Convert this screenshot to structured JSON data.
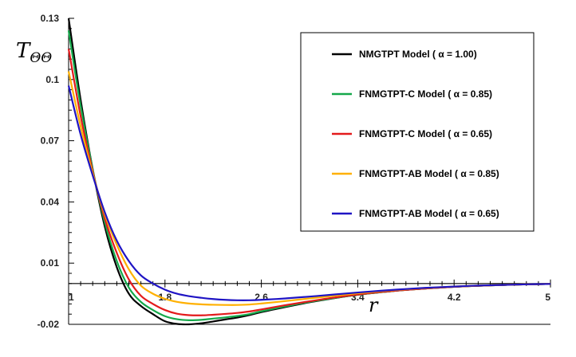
{
  "chart_data": {
    "type": "line",
    "title": "",
    "xlabel": "r",
    "ylabel": "TΘΘ",
    "xlim": [
      1,
      5
    ],
    "ylim": [
      -0.02,
      0.13
    ],
    "grid": false,
    "legend_placement": "top-right",
    "x_ticks": [
      "1",
      "1.8",
      "2.6",
      "3.4",
      "4.2",
      "5"
    ],
    "y_ticks": [
      "0.13",
      "0.1",
      "0.07",
      "0.04",
      "0.01",
      "-0.02"
    ],
    "x": [
      1.0,
      1.1,
      1.2,
      1.3,
      1.4,
      1.5,
      1.6,
      1.7,
      1.8,
      1.9,
      2.0,
      2.1,
      2.2,
      2.3,
      2.4,
      2.5,
      2.6,
      2.8,
      3.0,
      3.2,
      3.4,
      3.6,
      3.8,
      4.0,
      4.2,
      4.4,
      4.6,
      4.8,
      5.0
    ],
    "series": [
      {
        "name": "NMGTPT Model ( α = 1.00)",
        "color": "#000000",
        "values": [
          0.13,
          0.09,
          0.056,
          0.028,
          0.008,
          -0.005,
          -0.011,
          -0.015,
          -0.0185,
          -0.0198,
          -0.02,
          -0.0195,
          -0.0186,
          -0.0176,
          -0.0167,
          -0.0155,
          -0.014,
          -0.0115,
          -0.0092,
          -0.0072,
          -0.0055,
          -0.0042,
          -0.0031,
          -0.0023,
          -0.0016,
          -0.0011,
          -0.0007,
          -0.0004,
          -0.0002
        ]
      },
      {
        "name": "FNMGTPT-C Model ( α = 0.85)",
        "color": "#14a84a",
        "values": [
          0.124,
          0.087,
          0.056,
          0.03,
          0.011,
          -0.002,
          -0.009,
          -0.013,
          -0.016,
          -0.0175,
          -0.018,
          -0.0178,
          -0.0172,
          -0.0166,
          -0.0159,
          -0.015,
          -0.0136,
          -0.0112,
          -0.009,
          -0.0071,
          -0.0055,
          -0.0042,
          -0.0031,
          -0.0023,
          -0.0016,
          -0.0011,
          -0.0007,
          -0.0004,
          -0.0002
        ]
      },
      {
        "name": "FNMGTPT-C Model ( α = 0.65)",
        "color": "#e31a1c",
        "values": [
          0.115,
          0.082,
          0.055,
          0.032,
          0.015,
          0.002,
          -0.006,
          -0.01,
          -0.013,
          -0.0148,
          -0.0155,
          -0.0156,
          -0.0153,
          -0.0149,
          -0.0144,
          -0.0137,
          -0.0127,
          -0.0106,
          -0.0087,
          -0.0069,
          -0.0054,
          -0.0041,
          -0.0031,
          -0.0023,
          -0.0016,
          -0.0011,
          -0.0007,
          -0.0004,
          -0.0002
        ]
      },
      {
        "name": "FNMGTPT-AB Model ( α = 0.85)",
        "color": "#ffb000",
        "values": [
          0.104,
          0.077,
          0.054,
          0.034,
          0.019,
          0.007,
          -0.001,
          -0.005,
          -0.0075,
          -0.009,
          -0.0098,
          -0.0102,
          -0.0104,
          -0.0105,
          -0.0105,
          -0.0103,
          -0.0098,
          -0.0086,
          -0.0073,
          -0.006,
          -0.0048,
          -0.0037,
          -0.0028,
          -0.0021,
          -0.0015,
          -0.001,
          -0.0007,
          -0.0004,
          -0.0002
        ]
      },
      {
        "name": "FNMGTPT-AB Model ( α = 0.65)",
        "color": "#1f14c4",
        "values": [
          0.097,
          0.073,
          0.053,
          0.035,
          0.021,
          0.011,
          0.004,
          0.0,
          -0.003,
          -0.005,
          -0.0062,
          -0.007,
          -0.0076,
          -0.008,
          -0.0082,
          -0.0082,
          -0.008,
          -0.0073,
          -0.0064,
          -0.0054,
          -0.0044,
          -0.0035,
          -0.0027,
          -0.002,
          -0.0015,
          -0.001,
          -0.0007,
          -0.0004,
          -0.0002
        ]
      }
    ]
  }
}
